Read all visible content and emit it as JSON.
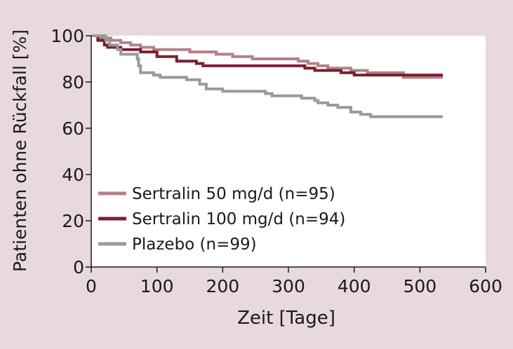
{
  "colors": {
    "background": "#e8d9dd",
    "plot_area": "#ffffff",
    "axis": "#1a1a1a",
    "text": "#1a1a1a"
  },
  "chart_data": {
    "type": "line",
    "step": true,
    "title": "",
    "xlabel": "Zeit [Tage]",
    "ylabel": "Patienten ohne Rückfall [%]",
    "xlim": [
      0,
      600
    ],
    "ylim": [
      0,
      100
    ],
    "xticks": [
      0,
      100,
      200,
      300,
      400,
      500,
      600
    ],
    "yticks": [
      0,
      20,
      40,
      60,
      80,
      100
    ],
    "grid": false,
    "legend_position": "bottom-left",
    "series": [
      {
        "name": "Sertralin 50 mg/d (n=95)",
        "color": "#b48187",
        "points": [
          [
            0,
            100
          ],
          [
            12,
            99
          ],
          [
            30,
            98
          ],
          [
            45,
            97
          ],
          [
            60,
            96
          ],
          [
            75,
            95
          ],
          [
            95,
            94
          ],
          [
            150,
            93
          ],
          [
            190,
            92
          ],
          [
            215,
            91
          ],
          [
            245,
            90
          ],
          [
            315,
            89
          ],
          [
            330,
            88
          ],
          [
            345,
            87
          ],
          [
            360,
            86
          ],
          [
            380,
            86
          ],
          [
            395,
            85
          ],
          [
            410,
            85
          ],
          [
            420,
            84
          ],
          [
            465,
            84
          ],
          [
            475,
            82
          ],
          [
            535,
            82
          ]
        ]
      },
      {
        "name": "Sertralin 100 mg/d (n=94)",
        "color": "#7a1f32",
        "points": [
          [
            0,
            100
          ],
          [
            10,
            98
          ],
          [
            20,
            96
          ],
          [
            25,
            95
          ],
          [
            45,
            94
          ],
          [
            75,
            93
          ],
          [
            100,
            91
          ],
          [
            130,
            89
          ],
          [
            160,
            88
          ],
          [
            170,
            87
          ],
          [
            310,
            87
          ],
          [
            325,
            86
          ],
          [
            340,
            85
          ],
          [
            360,
            85
          ],
          [
            380,
            84
          ],
          [
            400,
            83
          ],
          [
            535,
            83
          ]
        ]
      },
      {
        "name": "Plazebo (n=99)",
        "color": "#9a9a9a",
        "points": [
          [
            0,
            100
          ],
          [
            22,
            98
          ],
          [
            28,
            96
          ],
          [
            40,
            94
          ],
          [
            45,
            92
          ],
          [
            70,
            90
          ],
          [
            72,
            87
          ],
          [
            75,
            84
          ],
          [
            95,
            83
          ],
          [
            105,
            82
          ],
          [
            145,
            81
          ],
          [
            165,
            79
          ],
          [
            175,
            77
          ],
          [
            200,
            76
          ],
          [
            265,
            75
          ],
          [
            275,
            74
          ],
          [
            320,
            73
          ],
          [
            340,
            72
          ],
          [
            345,
            71
          ],
          [
            360,
            70
          ],
          [
            375,
            69
          ],
          [
            395,
            67
          ],
          [
            400,
            67
          ],
          [
            410,
            66
          ],
          [
            425,
            65
          ],
          [
            535,
            65
          ]
        ]
      }
    ]
  }
}
